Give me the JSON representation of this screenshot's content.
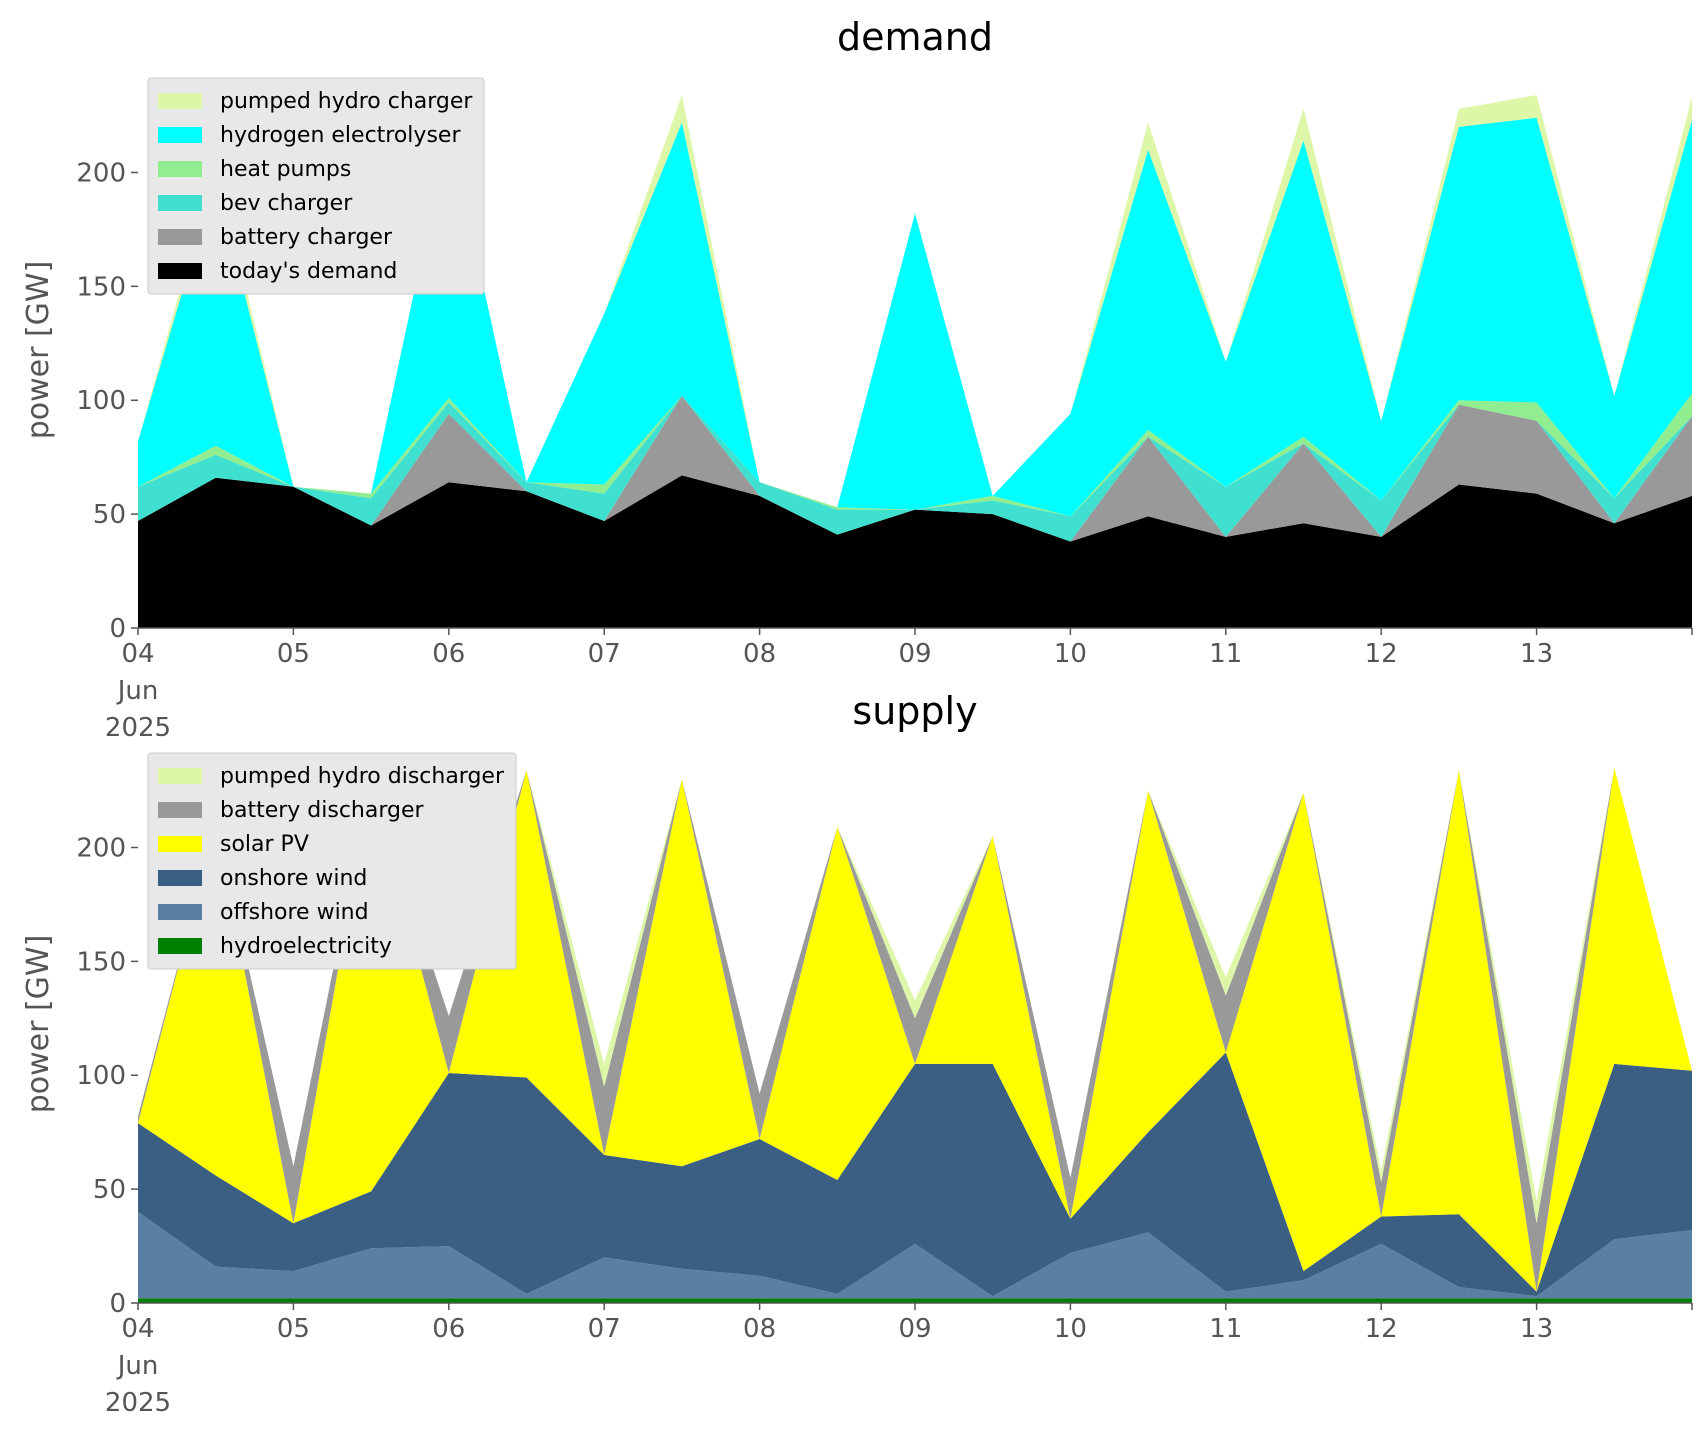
{
  "chart_data": [
    {
      "type": "area",
      "stacked": true,
      "title": "demand",
      "xlabel": "",
      "ylabel": "power [GW]",
      "x_tick_labels": [
        "04\nJun\n2025",
        "05",
        "06",
        "07",
        "08",
        "09",
        "10",
        "11",
        "12",
        "13"
      ],
      "y_ticks": [
        0,
        50,
        100,
        150,
        200
      ],
      "ylim": [
        0,
        245
      ],
      "legend_position": "upper-left",
      "legend_order": [
        "pumped hydro charger",
        "hydrogen electrolyser",
        "heat pumps",
        "bev charger",
        "battery charger",
        "today's demand"
      ],
      "x": [
        0,
        0.5,
        1,
        1.5,
        2,
        2.5,
        3,
        3.5,
        4,
        4.5,
        5,
        5.5,
        6,
        6.5,
        7,
        7.5,
        8,
        8.5,
        9,
        9.5,
        10
      ],
      "series": [
        {
          "name": "today's demand",
          "color": "#000000",
          "values": [
            47,
            66,
            62,
            45,
            64,
            60,
            47,
            67,
            58,
            41,
            52,
            50,
            38,
            49,
            40,
            46,
            40,
            63,
            59,
            46,
            58
          ]
        },
        {
          "name": "battery charger",
          "color": "#999999",
          "values": [
            0,
            0,
            0,
            0,
            30,
            0,
            0,
            35,
            0,
            0,
            0,
            0,
            0,
            35,
            0,
            35,
            0,
            35,
            32,
            0,
            35
          ]
        },
        {
          "name": "bev charger",
          "color": "#40e0d0",
          "values": [
            15,
            10,
            0,
            12,
            5,
            4,
            12,
            0,
            6,
            11,
            0,
            6,
            11,
            0,
            22,
            0,
            16,
            0,
            0,
            11,
            0
          ]
        },
        {
          "name": "heat pumps",
          "color": "#90ee90",
          "values": [
            0,
            4,
            0,
            2,
            2,
            0,
            4,
            0,
            0,
            1,
            0,
            2,
            0,
            3,
            0,
            3,
            0,
            2,
            8,
            0,
            10
          ]
        },
        {
          "name": "hydrogen electrolyser",
          "color": "#00ffff",
          "values": [
            20,
            117,
            0,
            0,
            118,
            0,
            75,
            120,
            0,
            0,
            130,
            0,
            45,
            123,
            55,
            130,
            35,
            120,
            125,
            45,
            120
          ]
        },
        {
          "name": "pumped hydro charger",
          "color": "#ddf6a8",
          "values": [
            0,
            8,
            0,
            0,
            0,
            0,
            0,
            12,
            0,
            0,
            0,
            0,
            0,
            12,
            0,
            14,
            0,
            8,
            10,
            0,
            10
          ]
        }
      ]
    },
    {
      "type": "area",
      "stacked": true,
      "title": "supply",
      "xlabel": "",
      "ylabel": "power [GW]",
      "x_tick_labels": [
        "04\nJun\n2025",
        "05",
        "06",
        "07",
        "08",
        "09",
        "10",
        "11",
        "12",
        "13"
      ],
      "y_ticks": [
        0,
        50,
        100,
        150,
        200
      ],
      "ylim": [
        0,
        245
      ],
      "legend_position": "upper-left",
      "legend_order": [
        "pumped hydro discharger",
        "battery discharger",
        "solar PV",
        "onshore wind",
        "offshore wind",
        "hydroelectricity"
      ],
      "x": [
        0,
        0.5,
        1,
        1.5,
        2,
        2.5,
        3,
        3.5,
        4,
        4.5,
        5,
        5.5,
        6,
        6.5,
        7,
        7.5,
        8,
        8.5,
        9,
        9.5,
        10
      ],
      "series": [
        {
          "name": "hydroelectricity",
          "color": "#008000",
          "values": [
            2,
            2,
            2,
            2,
            2,
            2,
            2,
            2,
            2,
            2,
            2,
            2,
            2,
            2,
            2,
            2,
            2,
            2,
            2,
            2,
            2
          ]
        },
        {
          "name": "offshore wind",
          "color": "#5b7fa3",
          "values": [
            38,
            14,
            12,
            22,
            23,
            2,
            18,
            13,
            10,
            2,
            24,
            1,
            20,
            29,
            3,
            8,
            24,
            5,
            1,
            26,
            30
          ]
        },
        {
          "name": "onshore wind",
          "color": "#3a5f82",
          "values": [
            39,
            40,
            21,
            25,
            76,
            95,
            45,
            45,
            60,
            50,
            79,
            102,
            15,
            44,
            105,
            4,
            12,
            32,
            2,
            77,
            70
          ]
        },
        {
          "name": "solar PV",
          "color": "#ffff00",
          "values": [
            0,
            155,
            0,
            180,
            0,
            135,
            0,
            170,
            0,
            155,
            0,
            100,
            0,
            150,
            0,
            210,
            0,
            195,
            0,
            130,
            0
          ]
        },
        {
          "name": "battery discharger",
          "color": "#999999",
          "values": [
            3,
            0,
            25,
            0,
            25,
            0,
            30,
            0,
            20,
            0,
            20,
            0,
            18,
            0,
            25,
            0,
            15,
            0,
            30,
            0,
            0
          ]
        },
        {
          "name": "pumped hydro discharger",
          "color": "#ddf6a8",
          "values": [
            0,
            0,
            0,
            0,
            0,
            0,
            10,
            0,
            0,
            0,
            8,
            0,
            0,
            0,
            8,
            0,
            5,
            0,
            10,
            0,
            0
          ]
        }
      ]
    }
  ]
}
